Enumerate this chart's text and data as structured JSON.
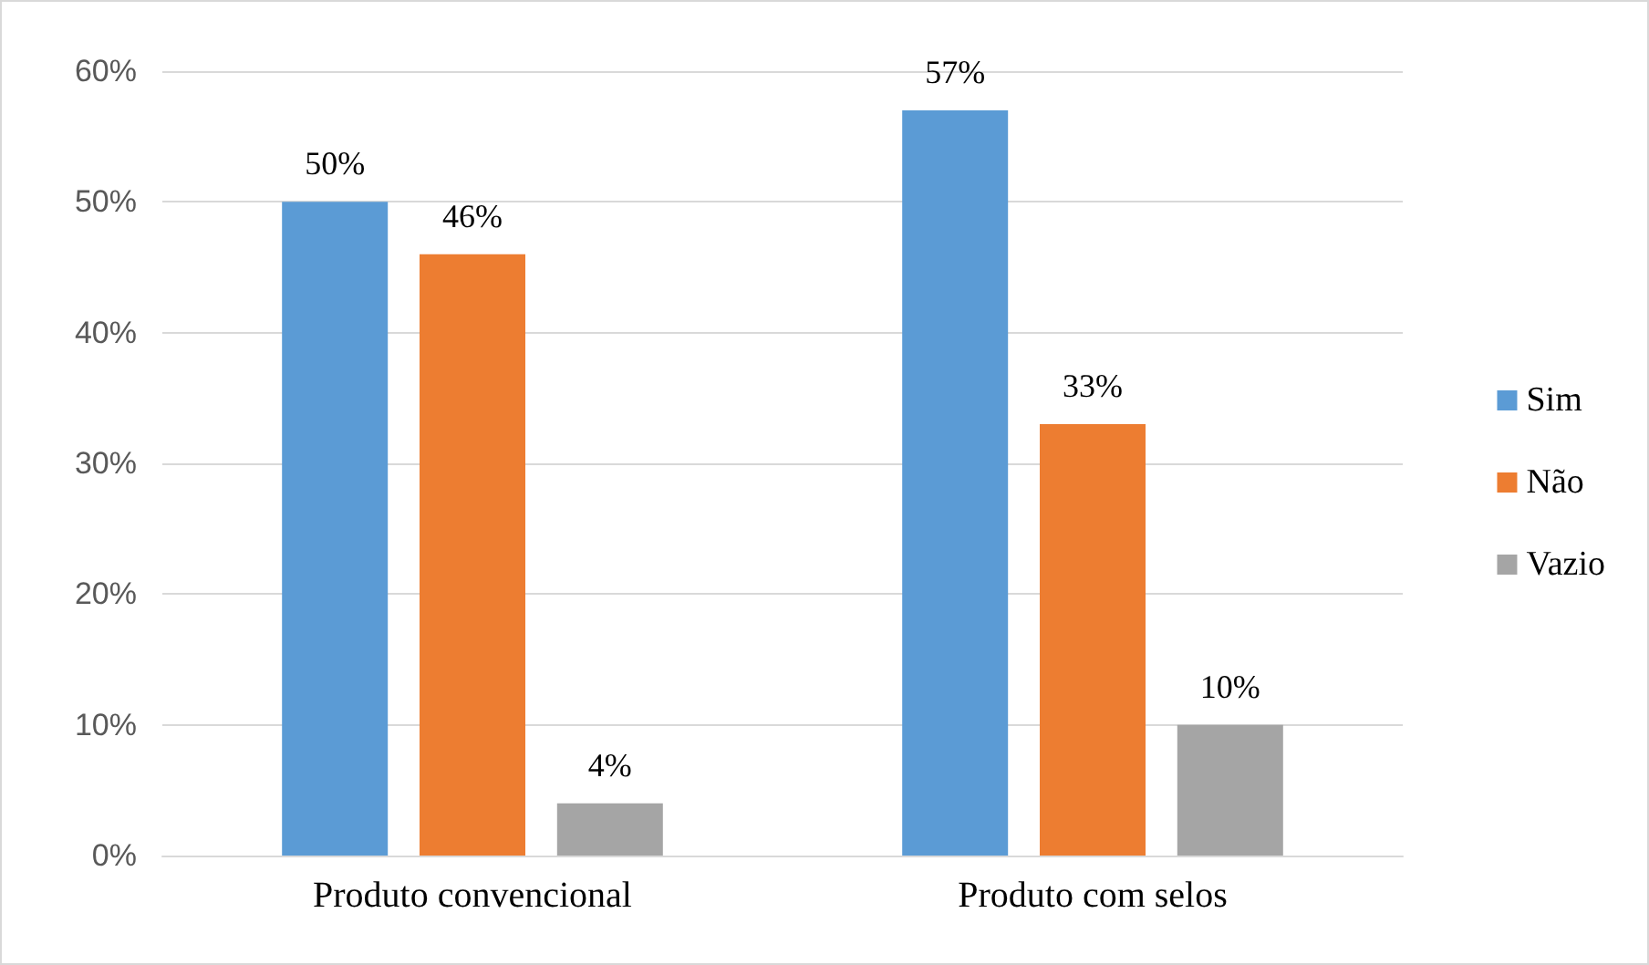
{
  "chart_data": {
    "type": "bar",
    "categories": [
      "Produto convencional",
      "Produto com selos"
    ],
    "series": [
      {
        "name": "Sim",
        "color": "#5b9bd5",
        "values": [
          50,
          57
        ],
        "value_labels": [
          "50%",
          "57%"
        ]
      },
      {
        "name": "Não",
        "color": "#ed7d31",
        "values": [
          46,
          33
        ],
        "value_labels": [
          "46%",
          "33%"
        ]
      },
      {
        "name": "Vazio",
        "color": "#a5a5a5",
        "values": [
          4,
          10
        ],
        "value_labels": [
          "4%",
          "10%"
        ]
      }
    ],
    "ylim": [
      0,
      60
    ],
    "yticks": [
      {
        "value": 0,
        "label": "0%"
      },
      {
        "value": 10,
        "label": "10%"
      },
      {
        "value": 20,
        "label": "20%"
      },
      {
        "value": 30,
        "label": "30%"
      },
      {
        "value": 40,
        "label": "40%"
      },
      {
        "value": 50,
        "label": "50%"
      },
      {
        "value": 60,
        "label": "60%"
      }
    ],
    "grid": "y",
    "legend": "right"
  }
}
